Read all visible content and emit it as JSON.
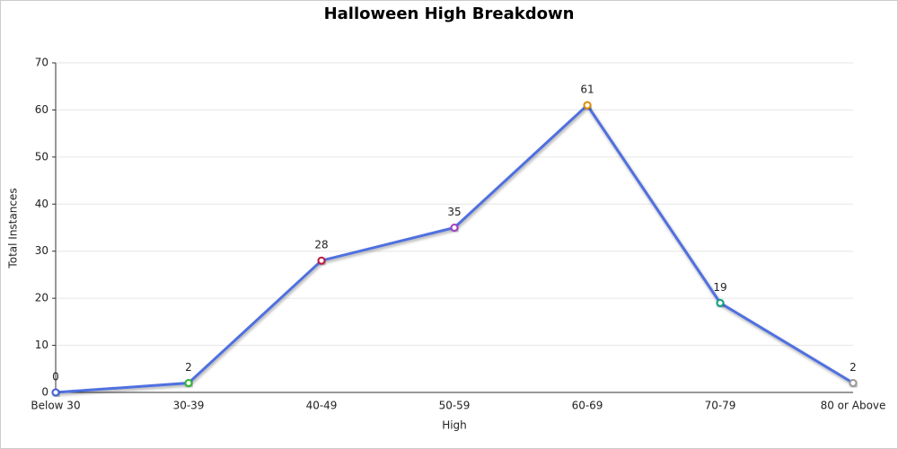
{
  "chart_data": {
    "type": "line",
    "title": "Halloween High Breakdown",
    "x_label": "High",
    "y_label": "Total Instances",
    "categories": [
      "Below 30",
      "30-39",
      "40-49",
      "50-59",
      "60-69",
      "70-79",
      "80 or Above"
    ],
    "series": [
      {
        "name": "Total Instances",
        "color": "#4f6fdf",
        "values": [
          0,
          2,
          28,
          35,
          61,
          19,
          2
        ]
      }
    ],
    "point_colors": [
      "#3f5fd0",
      "#2db52d",
      "#c0143c",
      "#a040c0",
      "#e08a00",
      "#10a080",
      "#9a9a9a"
    ],
    "ylim": [
      0,
      70
    ],
    "yticks": [
      0,
      10,
      20,
      30,
      40,
      50,
      60,
      70
    ],
    "grid": true
  }
}
